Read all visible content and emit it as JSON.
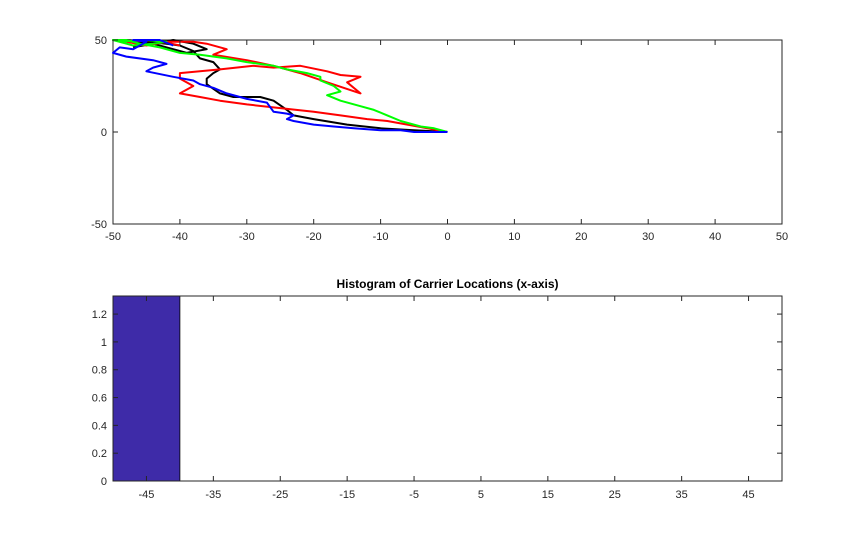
{
  "chart_data": [
    {
      "type": "line",
      "title": "",
      "xlabel": "",
      "ylabel": "",
      "xlim": [
        -50,
        50
      ],
      "ylim": [
        -50,
        50
      ],
      "xticks": [
        -50,
        -40,
        -30,
        -20,
        -10,
        0,
        10,
        20,
        30,
        40,
        50
      ],
      "yticks": [
        -50,
        0,
        50
      ],
      "grid": false,
      "series": [
        {
          "color": "#000000",
          "points": [
            [
              0,
              0
            ],
            [
              -5,
              1
            ],
            [
              -10,
              2
            ],
            [
              -15,
              4
            ],
            [
              -20,
              7
            ],
            [
              -23,
              9
            ],
            [
              -24,
              12
            ],
            [
              -26,
              17
            ],
            [
              -28,
              19
            ],
            [
              -32,
              19
            ],
            [
              -34,
              21
            ],
            [
              -36,
              26
            ],
            [
              -36,
              29
            ],
            [
              -35,
              32
            ],
            [
              -34,
              34
            ],
            [
              -35,
              38
            ],
            [
              -37,
              40
            ],
            [
              -38,
              44
            ],
            [
              -40,
              47
            ],
            [
              -42,
              48
            ],
            [
              -45,
              49
            ],
            [
              -48,
              50
            ],
            [
              -50,
              50
            ],
            [
              -47,
              49
            ],
            [
              -44,
              48
            ],
            [
              -41,
              45
            ],
            [
              -39,
              43
            ],
            [
              -36,
              45
            ],
            [
              -38,
              48
            ],
            [
              -41,
              50
            ],
            [
              -44,
              48
            ],
            [
              -47,
              46
            ]
          ]
        },
        {
          "color": "#ff0000",
          "points": [
            [
              0,
              0
            ],
            [
              -3,
              2
            ],
            [
              -6,
              4
            ],
            [
              -9,
              6
            ],
            [
              -12,
              7
            ],
            [
              -16,
              9
            ],
            [
              -20,
              11
            ],
            [
              -25,
              13
            ],
            [
              -30,
              15
            ],
            [
              -34,
              17
            ],
            [
              -37,
              19
            ],
            [
              -40,
              21
            ],
            [
              -38,
              25
            ],
            [
              -40,
              29
            ],
            [
              -40,
              32
            ],
            [
              -34,
              34
            ],
            [
              -29,
              36
            ],
            [
              -26,
              35
            ],
            [
              -22,
              36
            ],
            [
              -18,
              33
            ],
            [
              -16,
              31
            ],
            [
              -13,
              30
            ],
            [
              -15,
              27
            ],
            [
              -13,
              21
            ],
            [
              -18,
              27
            ],
            [
              -22,
              32
            ],
            [
              -26,
              36
            ],
            [
              -30,
              39
            ],
            [
              -35,
              42
            ],
            [
              -33,
              45
            ],
            [
              -36,
              48
            ],
            [
              -38,
              49
            ],
            [
              -42,
              49
            ],
            [
              -45,
              47
            ],
            [
              -48,
              49
            ],
            [
              -44,
              50
            ],
            [
              -40,
              47
            ]
          ]
        },
        {
          "color": "#00ff00",
          "points": [
            [
              0,
              0
            ],
            [
              -2,
              2
            ],
            [
              -4,
              3
            ],
            [
              -7,
              6
            ],
            [
              -9,
              9
            ],
            [
              -11,
              12
            ],
            [
              -13,
              14
            ],
            [
              -16,
              17
            ],
            [
              -18,
              20
            ],
            [
              -16,
              22
            ],
            [
              -17,
              25
            ],
            [
              -19,
              28
            ],
            [
              -19,
              30
            ],
            [
              -21,
              32
            ],
            [
              -24,
              34
            ],
            [
              -26,
              36
            ],
            [
              -30,
              38
            ],
            [
              -33,
              40
            ],
            [
              -37,
              42
            ],
            [
              -40,
              43
            ],
            [
              -43,
              46
            ],
            [
              -46,
              48
            ],
            [
              -48,
              50
            ],
            [
              -50,
              50
            ],
            [
              -47,
              47
            ],
            [
              -44,
              48
            ],
            [
              -42,
              49
            ],
            [
              -45,
              50
            ],
            [
              -49,
              49
            ]
          ]
        },
        {
          "color": "#0000ff",
          "points": [
            [
              0,
              0
            ],
            [
              -3,
              0
            ],
            [
              -5,
              0
            ],
            [
              -7,
              1
            ],
            [
              -10,
              1
            ],
            [
              -14,
              2
            ],
            [
              -17,
              3
            ],
            [
              -20,
              4
            ],
            [
              -23,
              6
            ],
            [
              -24,
              7
            ],
            [
              -23,
              9
            ],
            [
              -24,
              10
            ],
            [
              -26,
              11
            ],
            [
              -27,
              16
            ],
            [
              -30,
              18
            ],
            [
              -33,
              21
            ],
            [
              -35,
              24
            ],
            [
              -37,
              26
            ],
            [
              -38,
              28
            ],
            [
              -41,
              30
            ],
            [
              -45,
              33
            ],
            [
              -44,
              35
            ],
            [
              -42,
              37
            ],
            [
              -44,
              39
            ],
            [
              -48,
              41
            ],
            [
              -50,
              43
            ],
            [
              -49,
              46
            ],
            [
              -47,
              45
            ],
            [
              -46,
              47
            ],
            [
              -45,
              49
            ],
            [
              -47,
              50
            ],
            [
              -43,
              50
            ],
            [
              -41,
              47
            ]
          ]
        }
      ]
    },
    {
      "type": "bar",
      "title": "Histogram of Carrier Locations (x-axis)",
      "xlabel": "",
      "ylabel": "",
      "categories": [
        "-45",
        "-35",
        "-25",
        "-15",
        "-5",
        "5",
        "15",
        "25",
        "35",
        "45"
      ],
      "bin_edges": [
        -50,
        -40,
        -30,
        -20,
        -10,
        0,
        10,
        20,
        30,
        40,
        50
      ],
      "values": [
        1.33,
        0,
        0,
        0,
        0,
        0,
        0,
        0,
        0,
        0
      ],
      "ylim": [
        0,
        1.33
      ],
      "yticks": [
        0,
        0.2,
        0.4,
        0.6,
        0.8,
        1,
        1.2
      ],
      "bar_color": "#3e2ba8",
      "grid": false
    }
  ]
}
